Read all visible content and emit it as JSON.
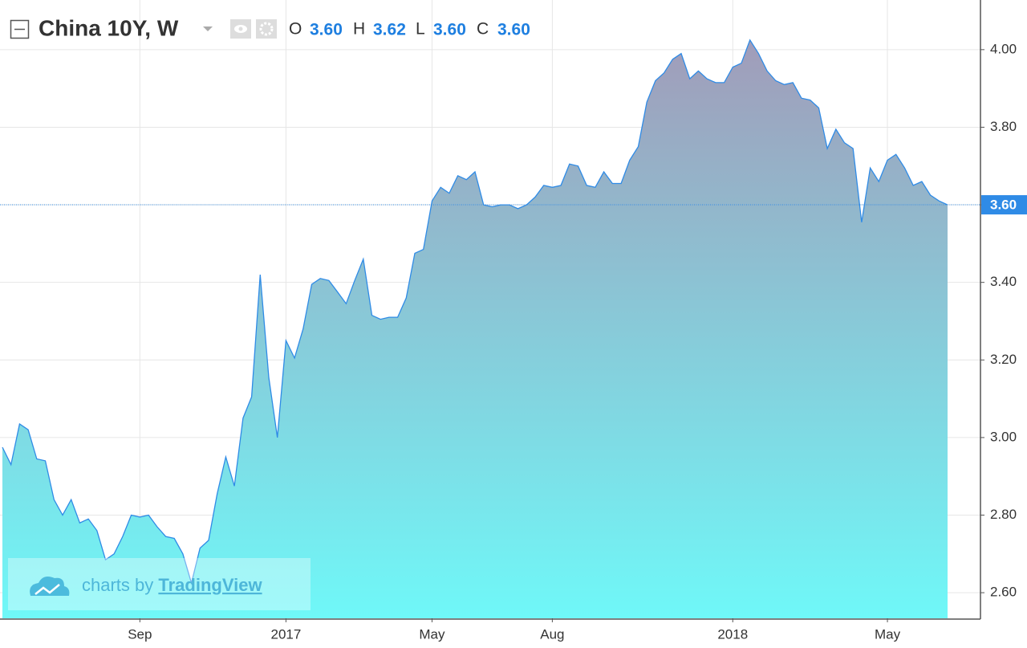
{
  "chart_data": {
    "type": "area",
    "title": "China 10Y, W",
    "ohlc": [
      {
        "key": "O",
        "value": "3.60"
      },
      {
        "key": "H",
        "value": "3.62"
      },
      {
        "key": "L",
        "value": "3.60"
      },
      {
        "key": "C",
        "value": "3.60"
      }
    ],
    "categories": [
      null,
      null,
      null,
      null,
      null,
      null,
      null,
      null,
      null,
      null,
      null,
      null,
      null,
      null,
      null,
      null,
      "Sep",
      null,
      null,
      null,
      null,
      null,
      null,
      null,
      null,
      null,
      null,
      null,
      null,
      null,
      null,
      null,
      null,
      "2017",
      null,
      null,
      null,
      null,
      null,
      null,
      null,
      null,
      null,
      null,
      null,
      null,
      null,
      null,
      null,
      null,
      "May",
      null,
      null,
      null,
      null,
      null,
      null,
      null,
      null,
      null,
      null,
      null,
      null,
      null,
      "Aug",
      null,
      null,
      null,
      null,
      null,
      null,
      null,
      null,
      null,
      null,
      null,
      null,
      null,
      null,
      null,
      null,
      null,
      null,
      null,
      null,
      "2018",
      null,
      null,
      null,
      null,
      null,
      null,
      null,
      null,
      null,
      null,
      null,
      null,
      null,
      null,
      null,
      null,
      null,
      "May",
      null,
      null,
      null,
      null,
      null,
      null,
      null
    ],
    "values": [
      2.975,
      2.93,
      3.035,
      3.02,
      2.945,
      2.94,
      2.84,
      2.8,
      2.84,
      2.78,
      2.79,
      2.76,
      2.685,
      2.7,
      2.745,
      2.8,
      2.795,
      2.8,
      2.77,
      2.745,
      2.74,
      2.7,
      2.625,
      2.715,
      2.735,
      2.855,
      2.95,
      2.875,
      3.05,
      3.105,
      3.42,
      3.155,
      3.0,
      3.25,
      3.205,
      3.28,
      3.395,
      3.41,
      3.405,
      3.375,
      3.345,
      3.405,
      3.46,
      3.315,
      3.305,
      3.31,
      3.31,
      3.36,
      3.475,
      3.485,
      3.61,
      3.645,
      3.63,
      3.675,
      3.665,
      3.685,
      3.6,
      3.595,
      3.6,
      3.6,
      3.59,
      3.6,
      3.62,
      3.65,
      3.645,
      3.65,
      3.705,
      3.7,
      3.65,
      3.645,
      3.685,
      3.655,
      3.655,
      3.715,
      3.75,
      3.865,
      3.92,
      3.94,
      3.975,
      3.99,
      3.925,
      3.945,
      3.925,
      3.915,
      3.915,
      3.955,
      3.965,
      4.025,
      3.99,
      3.945,
      3.92,
      3.91,
      3.915,
      3.875,
      3.87,
      3.85,
      3.745,
      3.795,
      3.76,
      3.745,
      3.555,
      3.695,
      3.66,
      3.715,
      3.73,
      3.695,
      3.65,
      3.66,
      3.625,
      3.61,
      3.6
    ],
    "color": "#2f8be6",
    "fill_top": "#a19cb9",
    "fill_bottom": "#6ff8f8",
    "ylim": [
      2.534,
      4.128
    ],
    "yticks": [
      {
        "value": 2.6,
        "label": "2.60"
      },
      {
        "value": 2.8,
        "label": "2.80"
      },
      {
        "value": 3.0,
        "label": "3.00"
      },
      {
        "value": 3.2,
        "label": "3.20"
      },
      {
        "value": 3.4,
        "label": "3.40"
      },
      {
        "value": 3.6,
        "label": "3.60"
      },
      {
        "value": 3.8,
        "label": "3.80"
      },
      {
        "value": 4.0,
        "label": "4.00"
      }
    ],
    "grid": true,
    "last_price": {
      "value": 3.6,
      "label": "3.60"
    }
  },
  "watermark": {
    "prefix": "charts by",
    "link": "TradingView"
  }
}
